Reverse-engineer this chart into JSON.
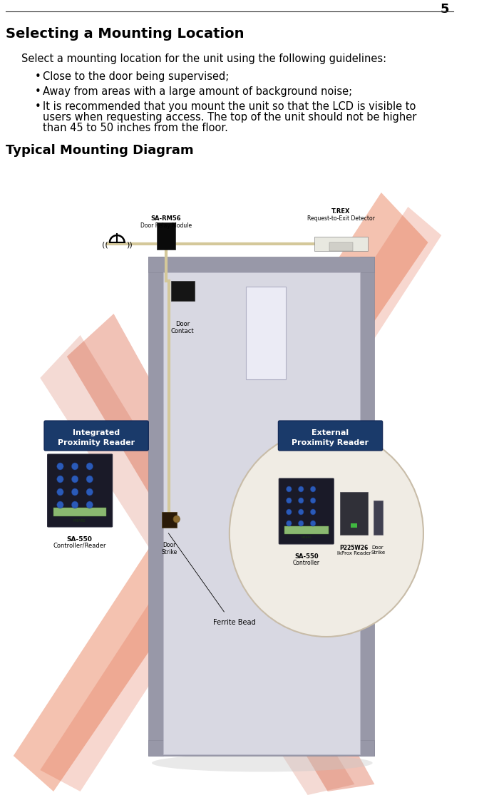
{
  "page_number": "5",
  "title": "Selecting a Mounting Location",
  "section2_title": "Typical Mounting Diagram",
  "intro_text": "Select a mounting location for the unit using the following guidelines:",
  "bullet1": "Close to the door being supervised;",
  "bullet2": "Away from areas with a large amount of background noise;",
  "bullet3a": "It is recommended that you mount the unit so that the LCD is visible to",
  "bullet3b": "users when requesting access. The top of the unit should not be higher",
  "bullet3c": "than 45 to 50 inches from the floor.",
  "bg_color": "#ffffff",
  "text_color": "#000000",
  "title_fontsize": 14,
  "body_fontsize": 10.5,
  "page_num_fontsize": 13,
  "section2_fontsize": 13,
  "wire_color": "#d4c89a",
  "frame_color": "#8a8a9a",
  "door_color": "#d0d0dc",
  "door_inner_color": "#dcdce8",
  "panel_color": "#e8e8f4",
  "module_color": "#111111",
  "reader_color": "#1a1a28",
  "lcd_color": "#8ab870",
  "btn_color": "#2a5ab8",
  "label_bg": "#1a3a6a",
  "circle_fill": "#f0ece4",
  "circle_edge": "#c8bca8",
  "iprox_color": "#303038"
}
